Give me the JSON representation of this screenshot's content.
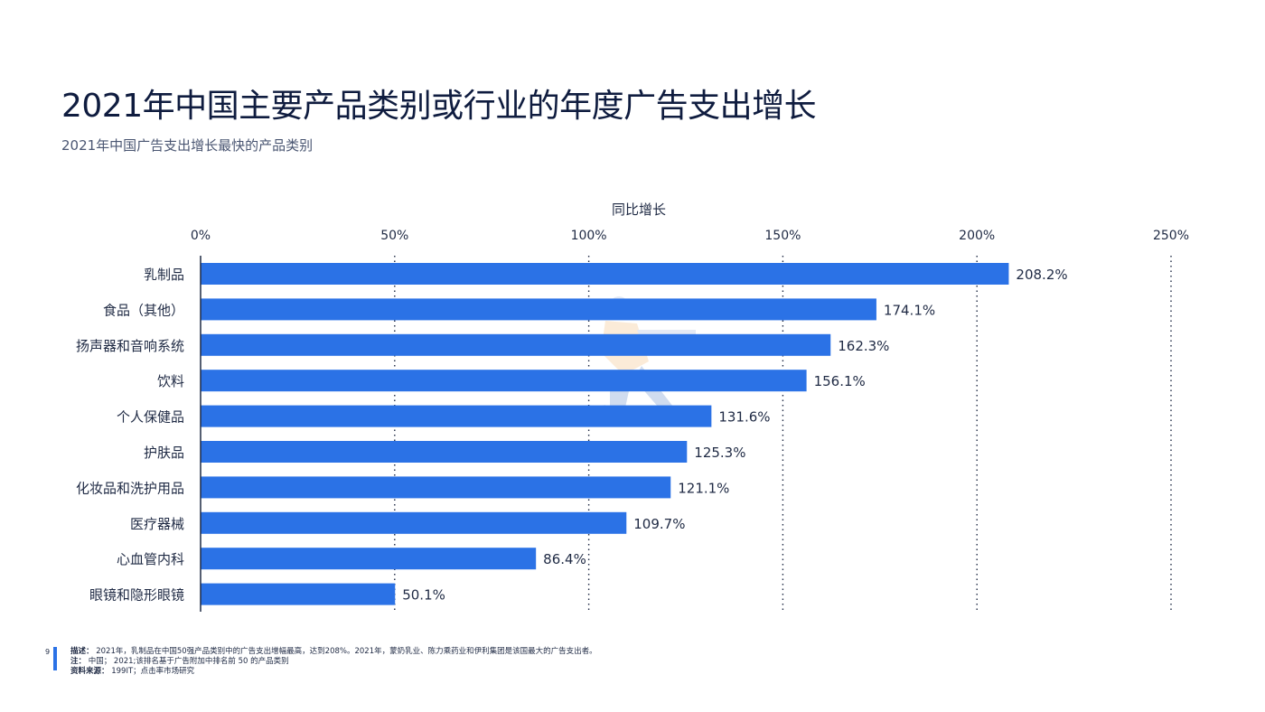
{
  "header": {
    "title": "2021年中国主要产品类别或行业的年度广告支出增长",
    "subtitle": "2021年中国广告支出增长最快的产品类别"
  },
  "colors": {
    "bar": "#2b72e6",
    "accent": "#2b72e6",
    "text": "#0f1c3f"
  },
  "chart_data": {
    "type": "bar",
    "orientation": "horizontal",
    "xlabel": "同比增长",
    "xlim": [
      0,
      250
    ],
    "xticks": [
      0,
      50,
      100,
      150,
      200,
      250
    ],
    "xtick_labels": [
      "0%",
      "50%",
      "100%",
      "150%",
      "200%",
      "250%"
    ],
    "grid": "vertical dotted",
    "categories": [
      "乳制品",
      "食品（其他）",
      "扬声器和音响系统",
      "饮料",
      "个人保健品",
      "护肤品",
      "化妆品和洗护用品",
      "医疗器械",
      "心血管内科",
      "眼镜和隐形眼镜"
    ],
    "values": [
      208.2,
      174.1,
      162.3,
      156.1,
      131.6,
      125.3,
      121.1,
      109.7,
      86.4,
      50.1
    ],
    "value_labels": [
      "208.2%",
      "174.1%",
      "162.3%",
      "156.1%",
      "131.6%",
      "125.3%",
      "121.1%",
      "109.7%",
      "86.4%",
      "50.1%"
    ]
  },
  "footer": {
    "page_number": "9",
    "description_label": "描述：",
    "description": "2021年，乳制品在中国50强产品类别中的广告支出增幅最高，达到208%。2021年，蒙奶乳业、陈力乘药业和伊利集团是该国最大的广告支出者。",
    "note_label": "注：",
    "note": "中国； 2021;该排名基于广告附加中排名前 50 的产品类别",
    "source_label": "资料来源：",
    "source": "199IT；点击率市场研究"
  }
}
